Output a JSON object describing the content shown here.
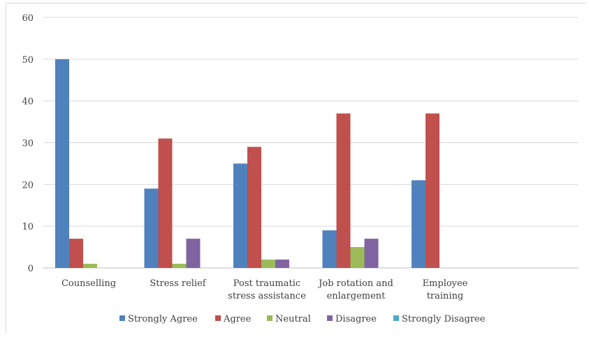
{
  "chart_data": {
    "type": "bar",
    "title": "",
    "xlabel": "",
    "ylabel": "",
    "ylim": [
      0,
      60
    ],
    "y_ticks": [
      "0",
      "10",
      "20",
      "30",
      "40",
      "50",
      "60"
    ],
    "grid": true,
    "legend_position": "bottom",
    "categories": [
      [
        "Counselling"
      ],
      [
        "Stress relief"
      ],
      [
        "Post traumatic",
        "stress assistance"
      ],
      [
        "Job rotation and",
        "enlargement"
      ],
      [
        "Employee",
        "training"
      ]
    ],
    "series": [
      {
        "name": "Strongly Agree",
        "color": "#4f81bd",
        "values": [
          50,
          19,
          25,
          9,
          21
        ]
      },
      {
        "name": "Agree",
        "color": "#c0504d",
        "values": [
          7,
          31,
          29,
          37,
          37
        ]
      },
      {
        "name": "Neutral",
        "color": "#9bbb59",
        "values": [
          1,
          1,
          2,
          5,
          0
        ]
      },
      {
        "name": "Disagree",
        "color": "#8064a2",
        "values": [
          0,
          7,
          2,
          7,
          0
        ]
      },
      {
        "name": "Strongly Disagree",
        "color": "#4bacc6",
        "values": [
          0,
          0,
          0,
          0,
          0
        ]
      }
    ]
  }
}
